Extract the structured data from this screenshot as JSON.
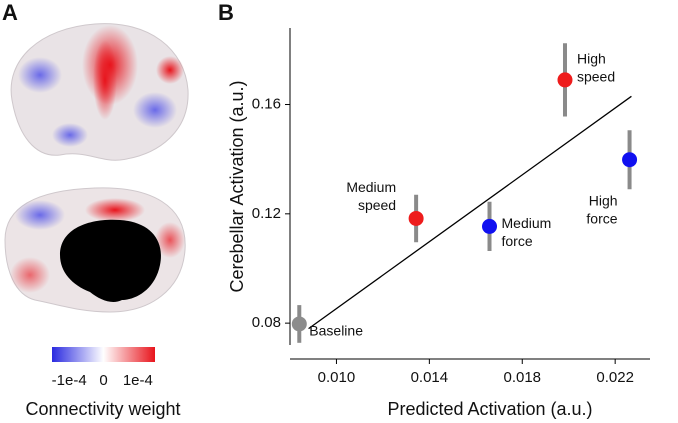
{
  "chart_data": [
    {
      "type": "colorbar",
      "panel": "A",
      "label": "Connectivity weight",
      "xlim": [
        -0.00015,
        0.00015
      ],
      "xticks": [
        {
          "value": -0.0001,
          "label": "-1e-4"
        },
        0,
        {
          "value": 0.0001,
          "label": "1e-4"
        }
      ],
      "colors": [
        "#2a2ae0",
        "#ffffff",
        "#e8141c"
      ]
    },
    {
      "type": "scatter",
      "panel": "B",
      "xlabel": "Predicted Activation (a.u.)",
      "ylabel": "Cerebellar Activation (a.u.)",
      "xlim": [
        0.008,
        0.0235
      ],
      "ylim": [
        0.072,
        0.188
      ],
      "xticks": [
        {
          "value": 0.01,
          "label": "0.010"
        },
        {
          "value": 0.014,
          "label": "0.014"
        },
        {
          "value": 0.018,
          "label": "0.018"
        },
        {
          "value": 0.022,
          "label": "0.022"
        }
      ],
      "yticks": [
        0.08,
        0.12,
        0.16
      ],
      "error_color": "#8a8a8a",
      "series": [
        {
          "label": [
            "Baseline"
          ],
          "color": "#8c8c8c",
          "x": 0.0084,
          "y": 0.0797,
          "err": 0.0069
        },
        {
          "label": [
            "Medium",
            "speed"
          ],
          "color": "#ee1c1c",
          "x": 0.01343,
          "y": 0.1183,
          "err": 0.0087
        },
        {
          "label": [
            "Medium",
            "force"
          ],
          "color": "#1010f0",
          "x": 0.01659,
          "y": 0.1154,
          "err": 0.009
        },
        {
          "label": [
            "High",
            "speed"
          ],
          "color": "#ee1c1c",
          "x": 0.01984,
          "y": 0.169,
          "err": 0.0134
        },
        {
          "label": [
            "High",
            "force"
          ],
          "color": "#1010f0",
          "x": 0.02262,
          "y": 0.1398,
          "err": 0.0108
        }
      ],
      "fit": {
        "x": [
          0.0088,
          0.0227
        ],
        "y": [
          0.078,
          0.163
        ],
        "color": "#000000"
      }
    }
  ]
}
